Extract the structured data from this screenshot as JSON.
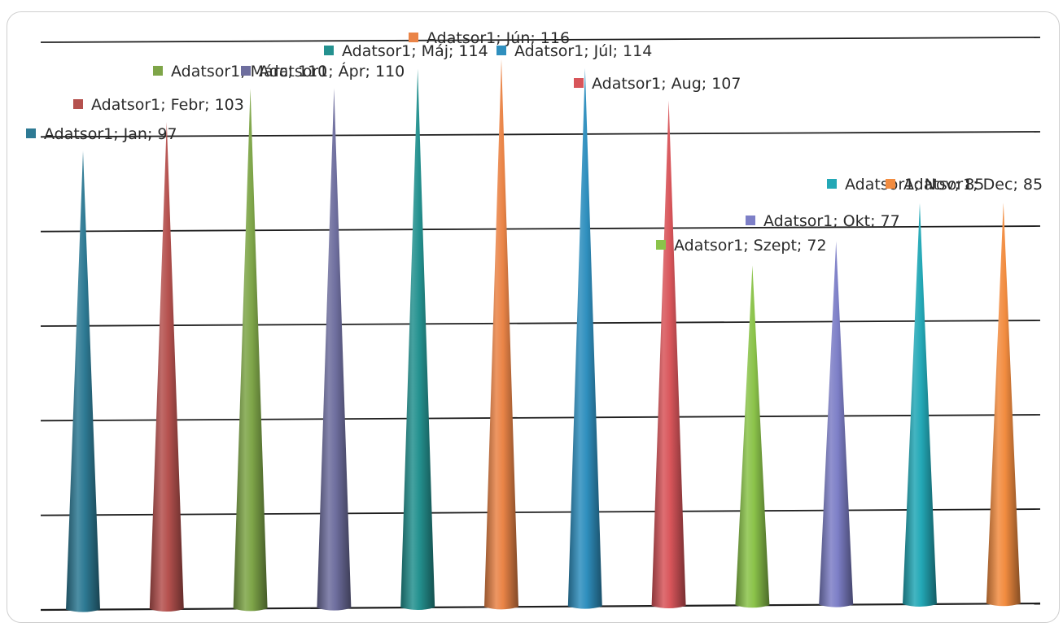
{
  "chart_data": {
    "type": "bar",
    "shape": "cone",
    "categories": [
      "Jan",
      "Febr",
      "Márc",
      "Ápr",
      "Máj",
      "Jún",
      "Júl",
      "Aug",
      "Szept",
      "Okt",
      "Nov",
      "Dec"
    ],
    "series": [
      {
        "name": "Adatsor1",
        "values": [
          97,
          103,
          110,
          110,
          114,
          116,
          114,
          107,
          72,
          77,
          85,
          85
        ]
      }
    ],
    "labels": [
      "Adatsor1; Jan; 97",
      "Adatsor1; Febr; 103",
      "Adatsor1; Márc; 110",
      "Adatsor1; Ápr; 110",
      "Adatsor1; Máj; 114",
      "Adatsor1; Jún; 116",
      "Adatsor1; Júl; 114",
      "Adatsor1; Aug; 107",
      "Adatsor1; Szept; 72",
      "Adatsor1; Okt; 77",
      "Adatsor1; Nov; 85",
      "Adatsor1; Dec; 85"
    ],
    "colors": [
      "#2e7a94",
      "#b5514e",
      "#7ea548",
      "#6e6e9e",
      "#24918f",
      "#ea8447",
      "#2f8fbe",
      "#d8555a",
      "#8bc34a",
      "#7d7fc7",
      "#23a8b6",
      "#f28c40"
    ],
    "title": "",
    "xlabel": "",
    "ylabel": "",
    "ylim": [
      0,
      120
    ],
    "grid": true,
    "legend": "none"
  }
}
